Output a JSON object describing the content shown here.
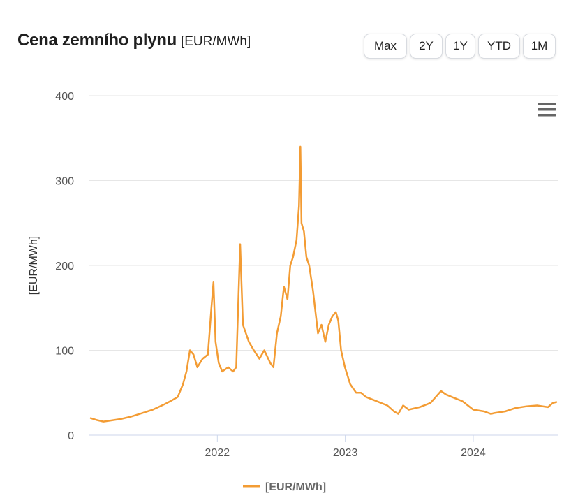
{
  "header": {
    "title": "Cena zemního plynu",
    "unit": "[EUR/MWh]"
  },
  "range_buttons": [
    {
      "label": "Max"
    },
    {
      "label": "2Y"
    },
    {
      "label": "1Y"
    },
    {
      "label": "YTD"
    },
    {
      "label": "1M"
    }
  ],
  "menu_icon": "hamburger-menu-icon",
  "colors": {
    "series": "#f39c34",
    "grid": "#e6e6e6",
    "axis": "#ccd6eb"
  },
  "chart_data": {
    "type": "line",
    "title": "",
    "xlabel": "",
    "ylabel": "[EUR/MWh]",
    "ylim": [
      0,
      400
    ],
    "yticks": [
      0,
      100,
      200,
      300,
      400
    ],
    "xlim": [
      "2021-01-01",
      "2024-08-31"
    ],
    "xticks": [
      {
        "value": "2022-01-01",
        "label": "2022"
      },
      {
        "value": "2023-01-01",
        "label": "2023"
      },
      {
        "value": "2024-01-01",
        "label": "2024"
      }
    ],
    "grid": true,
    "legend": "bottom-center",
    "series": [
      {
        "name": "[EUR/MWh]",
        "x": [
          "2021-01-05",
          "2021-01-20",
          "2021-02-10",
          "2021-03-01",
          "2021-04-01",
          "2021-05-01",
          "2021-06-01",
          "2021-07-01",
          "2021-08-01",
          "2021-08-20",
          "2021-09-10",
          "2021-09-25",
          "2021-10-05",
          "2021-10-15",
          "2021-10-25",
          "2021-11-05",
          "2021-11-20",
          "2021-12-05",
          "2021-12-15",
          "2021-12-21",
          "2021-12-27",
          "2022-01-05",
          "2022-01-15",
          "2022-02-01",
          "2022-02-15",
          "2022-02-24",
          "2022-03-07",
          "2022-03-15",
          "2022-04-01",
          "2022-04-15",
          "2022-05-01",
          "2022-05-15",
          "2022-06-01",
          "2022-06-10",
          "2022-06-20",
          "2022-07-01",
          "2022-07-10",
          "2022-07-20",
          "2022-07-28",
          "2022-08-05",
          "2022-08-15",
          "2022-08-22",
          "2022-08-26",
          "2022-08-29",
          "2022-09-05",
          "2022-09-12",
          "2022-09-20",
          "2022-10-01",
          "2022-10-15",
          "2022-10-25",
          "2022-11-05",
          "2022-11-15",
          "2022-11-25",
          "2022-12-05",
          "2022-12-12",
          "2022-12-20",
          "2022-12-31",
          "2023-01-15",
          "2023-02-01",
          "2023-02-15",
          "2023-03-01",
          "2023-04-01",
          "2023-05-01",
          "2023-05-20",
          "2023-06-01",
          "2023-06-15",
          "2023-07-01",
          "2023-08-01",
          "2023-09-01",
          "2023-10-01",
          "2023-10-15",
          "2023-11-01",
          "2023-12-01",
          "2024-01-01",
          "2024-02-01",
          "2024-02-20",
          "2024-03-01",
          "2024-04-01",
          "2024-05-01",
          "2024-06-01",
          "2024-07-01",
          "2024-08-01",
          "2024-08-15",
          "2024-08-25"
        ],
        "values": [
          20,
          18,
          16,
          17,
          19,
          22,
          26,
          30,
          36,
          40,
          45,
          60,
          75,
          100,
          95,
          80,
          90,
          95,
          150,
          180,
          110,
          85,
          75,
          80,
          75,
          80,
          225,
          130,
          110,
          100,
          90,
          100,
          85,
          80,
          120,
          140,
          175,
          160,
          200,
          210,
          230,
          270,
          340,
          250,
          240,
          210,
          200,
          170,
          120,
          130,
          110,
          130,
          140,
          145,
          135,
          100,
          80,
          60,
          50,
          50,
          45,
          40,
          35,
          28,
          25,
          35,
          30,
          33,
          38,
          52,
          48,
          45,
          40,
          30,
          28,
          25,
          26,
          28,
          32,
          34,
          35,
          33,
          38,
          39
        ]
      }
    ]
  }
}
